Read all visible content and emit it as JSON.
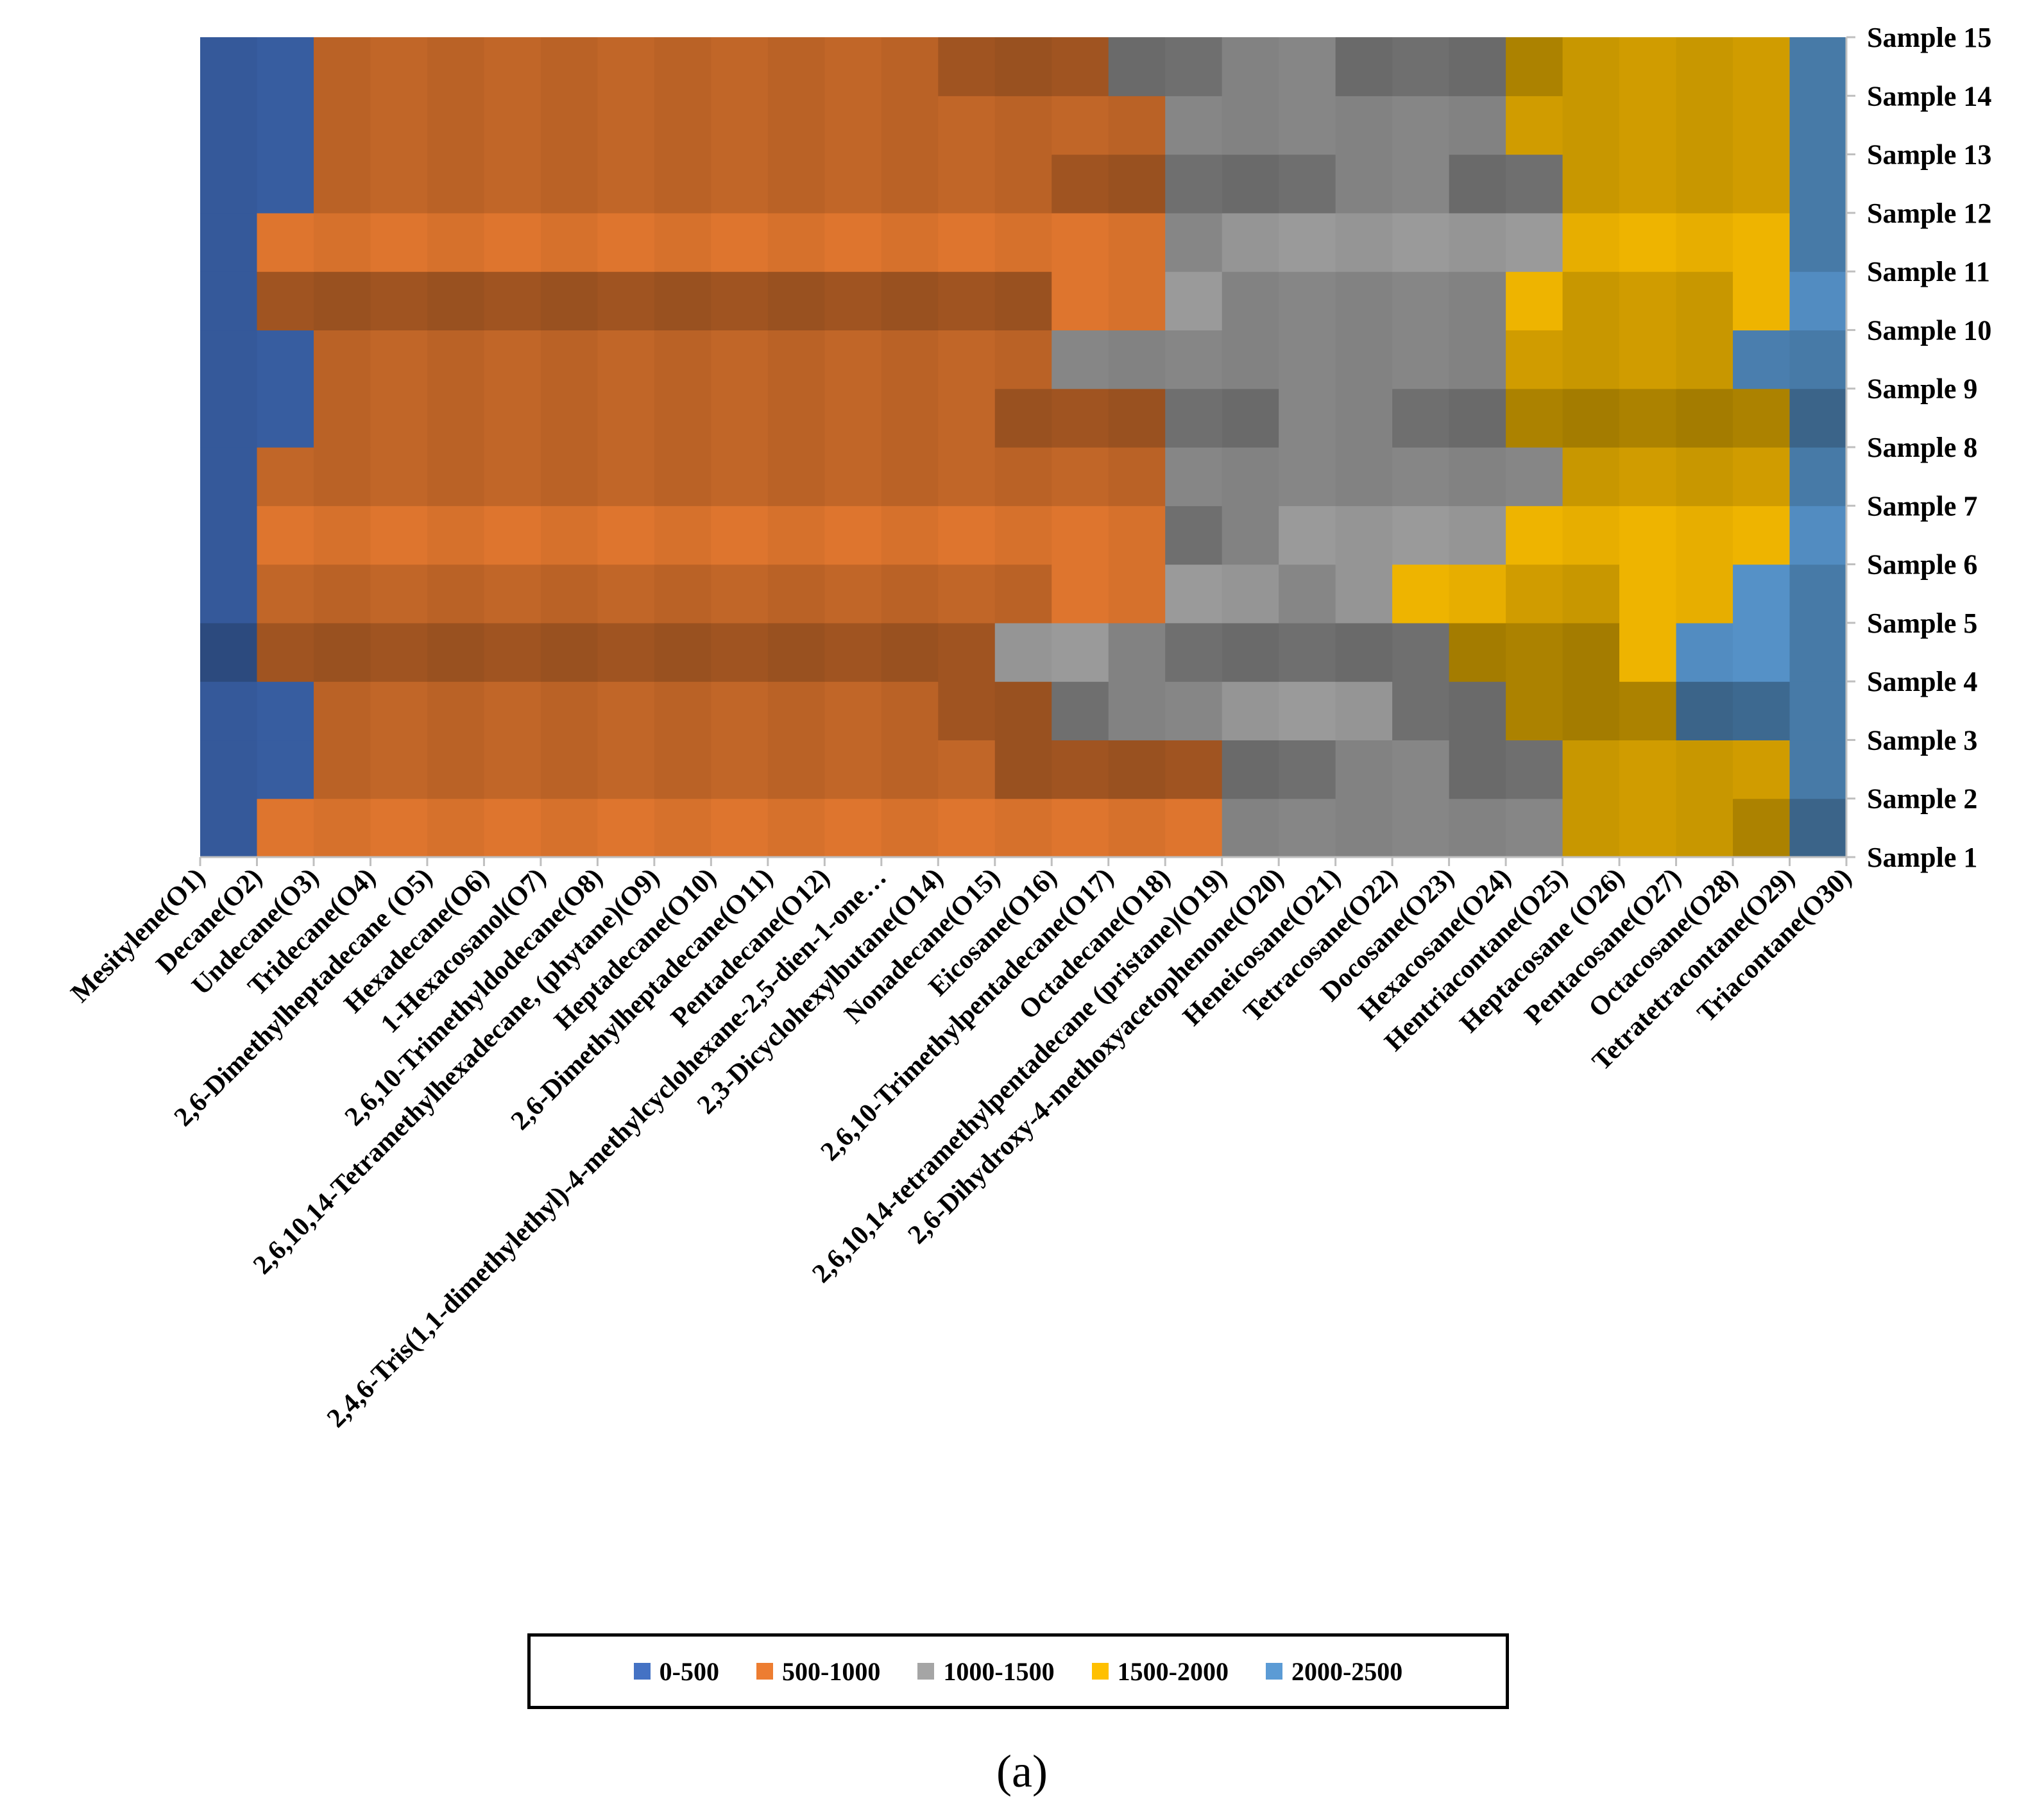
{
  "chart_data": {
    "type": "heatmap",
    "style": "surface-contour",
    "categories": [
      "Mesitylene(O1)",
      "Decane(O2)",
      "Undecane(O3)",
      "Tridecane(O4)",
      "2,6-Dimethylheptadecane (O5)",
      "Hexadecane(O6)",
      "1-Hexacosanol(O7)",
      "2,6,10-Trimethyldodecane(O8)",
      "2,6,10,14-Tetramethylhexadecane, (phytane)(O9)",
      "Heptadecane(O10)",
      "2,6-Dimethylheptadecane(O11)",
      "Pentadecane(O12)",
      "2,4,6-Tris(1,1-dimethylethyl)-4-methylcyclohexane-2,5-dien-1-one…",
      "2,3-Dicyclohexylbutane(O14)",
      "Nonadecane(O15)",
      "Eicosane(O16)",
      "2,6,10-Trimethylpentadecane(O17)",
      "Octadecane(O18)",
      "2,6,10,14-tetramethylpentadecane (pristane)(O19)",
      "2,6-Dihydroxy-4-methoxyacetophenone(O20)",
      "Heneicosane(O21)",
      "Tetracosane(O22)",
      "Docosane(O23)",
      "Hexacosane(O24)",
      "Hentriacontane(O25)",
      "Heptacosane (O26)",
      "Pentacosane(O27)",
      "Octacosane(O28)",
      "Tetratetracontane(O29)",
      "Triacontane(O30)"
    ],
    "samples": [
      "Sample 1",
      "Sample 2",
      "Sample 3",
      "Sample 4",
      "Sample 5",
      "Sample 6",
      "Sample 7",
      "Sample 8",
      "Sample 9",
      "Sample 10",
      "Sample 11",
      "Sample 12",
      "Sample 13",
      "Sample 14",
      "Sample 15"
    ],
    "values": [
      [
        250,
        420,
        1020,
        1020,
        1020,
        1020,
        1020,
        1020,
        1020,
        1020,
        1020,
        1020,
        1020,
        1020,
        1020,
        1020,
        1020,
        1020,
        1030,
        1070,
        1250,
        1250,
        1250,
        1270,
        1550,
        1620,
        1700,
        1800,
        1960,
        2200
      ],
      [
        250,
        420,
        520,
        520,
        520,
        520,
        520,
        520,
        520,
        520,
        520,
        520,
        520,
        520,
        520,
        520,
        520,
        520,
        1040,
        1060,
        1250,
        1250,
        1250,
        1300,
        1540,
        1620,
        1700,
        1800,
        2100,
        2200
      ],
      [
        250,
        350,
        520,
        520,
        520,
        520,
        520,
        520,
        520,
        520,
        520,
        520,
        520,
        520,
        520,
        1020,
        1040,
        1060,
        1250,
        1250,
        1250,
        1250,
        1280,
        1450,
        1550,
        1650,
        1750,
        1850,
        2100,
        2200
      ],
      [
        150,
        360,
        520,
        520,
        520,
        520,
        520,
        520,
        520,
        520,
        520,
        520,
        520,
        520,
        1100,
        1100,
        1100,
        1100,
        1100,
        1100,
        1150,
        1200,
        1550,
        1600,
        1750,
        1850,
        2200,
        2200,
        2200,
        2200
      ],
      [
        260,
        470,
        880,
        880,
        880,
        880,
        880,
        880,
        880,
        880,
        880,
        880,
        880,
        880,
        880,
        950,
        1050,
        1150,
        1250,
        1300,
        1450,
        1500,
        1650,
        1700,
        1850,
        1900,
        2000,
        2050,
        2200,
        2200
      ],
      [
        260,
        470,
        880,
        880,
        880,
        880,
        880,
        880,
        880,
        880,
        880,
        880,
        880,
        880,
        880,
        880,
        880,
        880,
        1000,
        1300,
        1350,
        1450,
        1550,
        1650,
        1800,
        1850,
        1900,
        2000,
        2100,
        2200
      ],
      [
        260,
        460,
        560,
        560,
        560,
        560,
        560,
        560,
        560,
        560,
        560,
        560,
        560,
        560,
        560,
        560,
        560,
        1060,
        1060,
        1200,
        1250,
        1250,
        1250,
        1300,
        1550,
        1600,
        1700,
        1800,
        1900,
        2200
      ],
      [
        260,
        460,
        560,
        560,
        560,
        560,
        560,
        560,
        560,
        560,
        560,
        560,
        560,
        560,
        560,
        560,
        560,
        1060,
        1060,
        1200,
        1250,
        1250,
        1250,
        1300,
        1550,
        1600,
        1700,
        1800,
        1900,
        2200
      ],
      [
        240,
        400,
        520,
        520,
        520,
        520,
        520,
        520,
        520,
        520,
        520,
        520,
        520,
        520,
        520,
        1000,
        1050,
        1100,
        1200,
        1250,
        1250,
        1300,
        1350,
        1550,
        1650,
        1700,
        1800,
        1950,
        2100,
        2200
      ],
      [
        240,
        400,
        520,
        520,
        520,
        520,
        520,
        520,
        520,
        520,
        520,
        520,
        520,
        520,
        520,
        1000,
        1050,
        1100,
        1200,
        1250,
        1250,
        1300,
        1350,
        1550,
        1650,
        1700,
        1800,
        1950,
        2100,
        2200
      ],
      [
        260,
        470,
        880,
        880,
        880,
        880,
        880,
        880,
        880,
        880,
        880,
        880,
        880,
        880,
        880,
        880,
        880,
        950,
        1150,
        1200,
        1300,
        1350,
        1400,
        1450,
        1600,
        1700,
        1800,
        1900,
        2000,
        2050
      ],
      [
        250,
        400,
        520,
        520,
        520,
        520,
        520,
        520,
        520,
        520,
        520,
        520,
        520,
        520,
        520,
        520,
        520,
        1020,
        1020,
        1050,
        1250,
        1250,
        1250,
        1300,
        1500,
        1600,
        1700,
        1800,
        1950,
        2200
      ],
      [
        250,
        400,
        520,
        520,
        520,
        520,
        520,
        520,
        520,
        520,
        520,
        520,
        520,
        520,
        520,
        520,
        900,
        1050,
        1150,
        1200,
        1250,
        1250,
        1300,
        1450,
        1550,
        1650,
        1750,
        1850,
        1950,
        2200
      ],
      [
        250,
        400,
        520,
        520,
        520,
        520,
        520,
        520,
        520,
        520,
        520,
        520,
        520,
        520,
        520,
        520,
        900,
        1050,
        1150,
        1200,
        1250,
        1250,
        1300,
        1450,
        1550,
        1650,
        1750,
        1850,
        1950,
        2200
      ],
      [
        250,
        400,
        520,
        520,
        520,
        520,
        520,
        520,
        520,
        520,
        520,
        520,
        520,
        520,
        850,
        1020,
        1050,
        1150,
        1200,
        1250,
        1300,
        1350,
        1450,
        1550,
        1600,
        1700,
        1750,
        1850,
        2000,
        2200
      ]
    ],
    "bands": [
      "0-500",
      "500-1000",
      "1000-1500",
      "1500-2000",
      "2000-2500"
    ],
    "band_colors": [
      "#4472C4",
      "#ED7D31",
      "#A5A5A5",
      "#FFC000",
      "#5B9BD5"
    ],
    "legend_position": "bottom",
    "caption": "(a)"
  }
}
